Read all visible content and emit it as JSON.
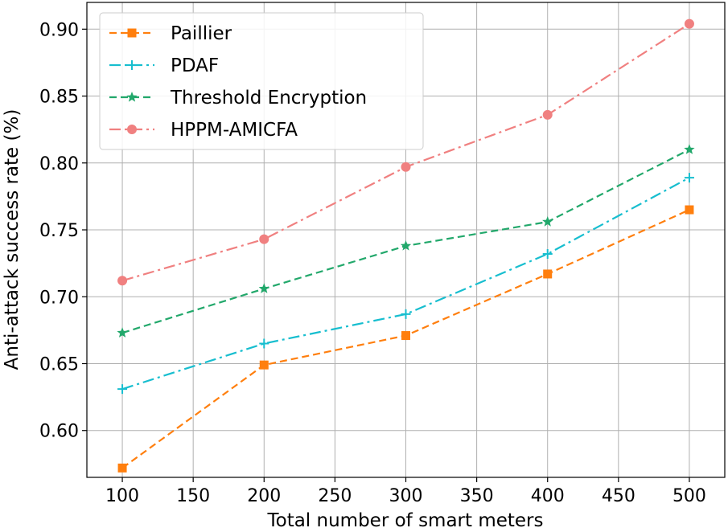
{
  "chart_data": {
    "type": "line",
    "xlabel": "Total number of smart meters",
    "ylabel": "Anti-attack success rate (%)",
    "xlim": [
      75,
      525
    ],
    "ylim": [
      0.565,
      0.92
    ],
    "xticks": [
      100,
      150,
      200,
      250,
      300,
      350,
      400,
      450,
      500
    ],
    "yticks": [
      0.6,
      0.65,
      0.7,
      0.75,
      0.8,
      0.85,
      0.9
    ],
    "x": [
      100,
      200,
      300,
      400,
      500
    ],
    "grid": true,
    "legend_position": "top-left",
    "series": [
      {
        "name": "Paillier",
        "values": [
          0.572,
          0.649,
          0.671,
          0.717,
          0.765
        ],
        "color": "#ff7f0e",
        "marker": "square",
        "dash": "dashed"
      },
      {
        "name": "PDAF",
        "values": [
          0.631,
          0.665,
          0.687,
          0.732,
          0.789
        ],
        "color": "#17becf",
        "marker": "plus",
        "dash": "dashdot"
      },
      {
        "name": "Threshold Encryption",
        "values": [
          0.673,
          0.706,
          0.738,
          0.756,
          0.81
        ],
        "color": "#22a86b",
        "marker": "star",
        "dash": "dashed"
      },
      {
        "name": "HPPM-AMICFA",
        "values": [
          0.712,
          0.743,
          0.797,
          0.836,
          0.904
        ],
        "color": "#f08080",
        "marker": "circle",
        "dash": "dashdot"
      }
    ]
  }
}
